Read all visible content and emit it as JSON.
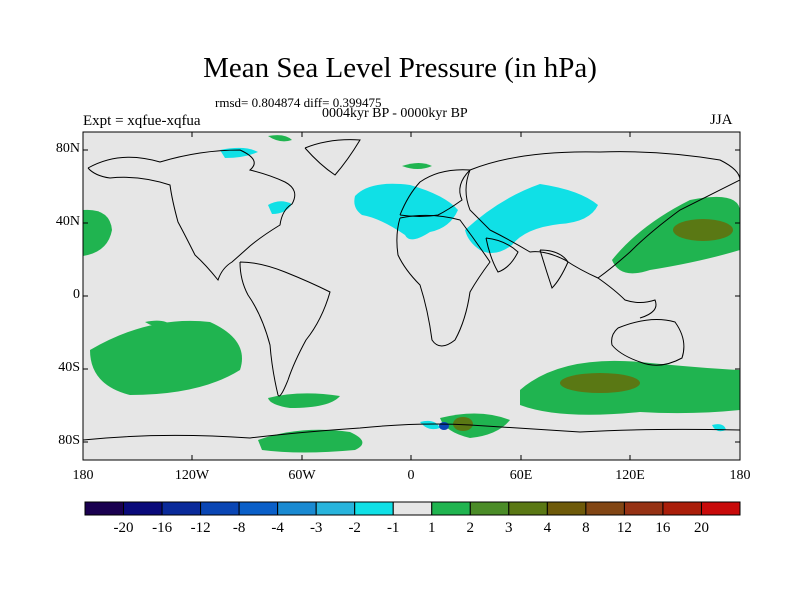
{
  "title": "Mean Sea Level Pressure (in hPa)",
  "stats": "rmsd= 0.804874 diff= 0.399475",
  "period": "0004kyr BP - 0000kyr BP",
  "experiment": "Expt = xqfue-xqfua",
  "season": "JJA",
  "map": {
    "lat_ticks": [
      "80N",
      "40N",
      "0",
      "40S",
      "80S"
    ],
    "lon_ticks": [
      "180",
      "120W",
      "60W",
      "0",
      "60E",
      "120E",
      "180"
    ],
    "background_color": "#e6e6e6"
  },
  "colorbar": {
    "colors": [
      "#1a0050",
      "#0a0a7a",
      "#0a2a9a",
      "#0a46b4",
      "#0a5fc8",
      "#1a8ad2",
      "#28b4dc",
      "#10e0e6",
      "#e6e6e6",
      "#20b450",
      "#4b8c28",
      "#5a7814",
      "#6e5a0a",
      "#824614",
      "#963214",
      "#aa1e0a",
      "#c80a0a"
    ],
    "labels": [
      "-20",
      "-16",
      "-12",
      "-8",
      "-4",
      "-3",
      "-2",
      "-1",
      "1",
      "2",
      "3",
      "4",
      "8",
      "12",
      "16",
      "20"
    ]
  }
}
